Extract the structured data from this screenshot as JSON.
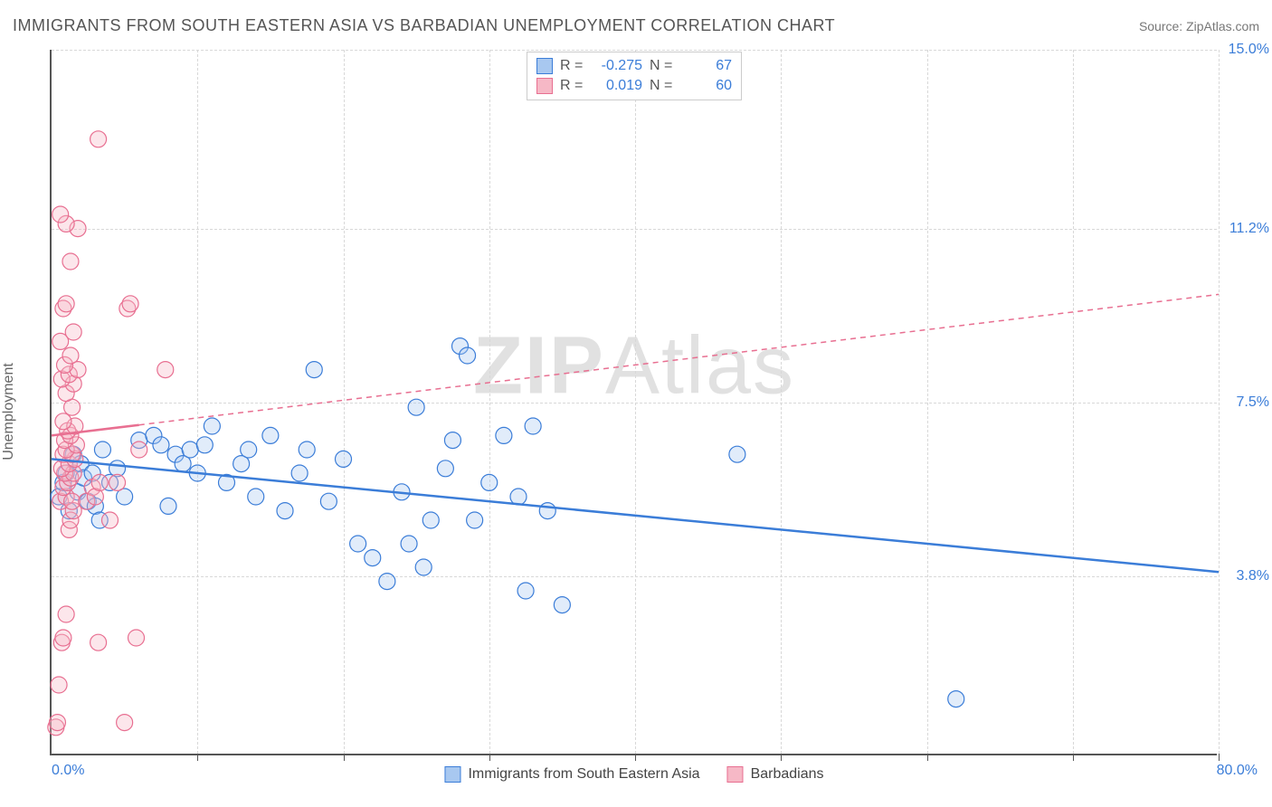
{
  "header": {
    "title": "IMMIGRANTS FROM SOUTH EASTERN ASIA VS BARBADIAN UNEMPLOYMENT CORRELATION CHART",
    "source": "Source: ZipAtlas.com"
  },
  "ylabel": "Unemployment",
  "watermark": {
    "bold": "ZIP",
    "light": "Atlas"
  },
  "chart": {
    "type": "scatter-with-regression",
    "background_color": "#ffffff",
    "grid_color": "#d8d8d8",
    "axis_color": "#555555",
    "label_color": "#3b7dd8",
    "xlim": [
      0,
      80
    ],
    "ylim": [
      0,
      15
    ],
    "y_ticks": [
      3.8,
      7.5,
      11.2,
      15.0
    ],
    "y_tick_labels": [
      "3.8%",
      "7.5%",
      "11.2%",
      "15.0%"
    ],
    "x_ticks": [
      0,
      10,
      20,
      30,
      40,
      50,
      60,
      70,
      80
    ],
    "x_corner_min": "0.0%",
    "x_corner_max": "80.0%",
    "marker_radius": 9,
    "marker_stroke_width": 1.2,
    "marker_fill_opacity": 0.35,
    "regression_line_width": 2.5,
    "series": [
      {
        "key": "immigrants",
        "label": "Immigrants from South Eastern Asia",
        "color_fill": "#a8c8f0",
        "color_stroke": "#3b7dd8",
        "line_dash": "none",
        "R": "-0.275",
        "N": "67",
        "regression": {
          "x1": 0,
          "y1": 6.3,
          "x2": 80,
          "y2": 3.9
        },
        "points": [
          [
            0.5,
            5.5
          ],
          [
            0.8,
            5.8
          ],
          [
            1.0,
            6.0
          ],
          [
            1.2,
            5.2
          ],
          [
            1.5,
            6.4
          ],
          [
            1.8,
            5.6
          ],
          [
            2.0,
            6.2
          ],
          [
            2.2,
            5.9
          ],
          [
            2.5,
            5.4
          ],
          [
            2.8,
            6.0
          ],
          [
            3.0,
            5.3
          ],
          [
            3.3,
            5.0
          ],
          [
            3.5,
            6.5
          ],
          [
            4.0,
            5.8
          ],
          [
            4.5,
            6.1
          ],
          [
            5.0,
            5.5
          ],
          [
            6.0,
            6.7
          ],
          [
            7.0,
            6.8
          ],
          [
            7.5,
            6.6
          ],
          [
            8.0,
            5.3
          ],
          [
            8.5,
            6.4
          ],
          [
            9.0,
            6.2
          ],
          [
            9.5,
            6.5
          ],
          [
            10.0,
            6.0
          ],
          [
            10.5,
            6.6
          ],
          [
            11.0,
            7.0
          ],
          [
            12.0,
            5.8
          ],
          [
            13.0,
            6.2
          ],
          [
            13.5,
            6.5
          ],
          [
            14.0,
            5.5
          ],
          [
            15.0,
            6.8
          ],
          [
            16.0,
            5.2
          ],
          [
            17.0,
            6.0
          ],
          [
            17.5,
            6.5
          ],
          [
            18.0,
            8.2
          ],
          [
            19.0,
            5.4
          ],
          [
            20.0,
            6.3
          ],
          [
            21.0,
            4.5
          ],
          [
            22.0,
            4.2
          ],
          [
            23.0,
            3.7
          ],
          [
            24.0,
            5.6
          ],
          [
            24.5,
            4.5
          ],
          [
            25.0,
            7.4
          ],
          [
            25.5,
            4.0
          ],
          [
            26.0,
            5.0
          ],
          [
            27.0,
            6.1
          ],
          [
            27.5,
            6.7
          ],
          [
            28.0,
            8.7
          ],
          [
            28.5,
            8.5
          ],
          [
            29.0,
            5.0
          ],
          [
            30.0,
            5.8
          ],
          [
            31.0,
            6.8
          ],
          [
            32.0,
            5.5
          ],
          [
            32.5,
            3.5
          ],
          [
            33.0,
            7.0
          ],
          [
            34.0,
            5.2
          ],
          [
            35.0,
            3.2
          ],
          [
            47.0,
            6.4
          ],
          [
            62.0,
            1.2
          ]
        ]
      },
      {
        "key": "barbadians",
        "label": "Barbadians",
        "color_fill": "#f6b8c6",
        "color_stroke": "#e86f91",
        "line_dash": "6 5",
        "R": "0.019",
        "N": "60",
        "regression": {
          "x1": 0,
          "y1": 6.8,
          "x2": 80,
          "y2": 9.8
        },
        "points": [
          [
            0.3,
            0.6
          ],
          [
            0.4,
            0.7
          ],
          [
            0.5,
            1.5
          ],
          [
            0.7,
            2.4
          ],
          [
            0.8,
            2.5
          ],
          [
            1.0,
            3.0
          ],
          [
            1.2,
            4.8
          ],
          [
            1.3,
            5.0
          ],
          [
            1.5,
            5.2
          ],
          [
            0.6,
            5.4
          ],
          [
            1.0,
            5.5
          ],
          [
            1.4,
            5.4
          ],
          [
            0.8,
            5.7
          ],
          [
            1.1,
            5.8
          ],
          [
            1.3,
            5.9
          ],
          [
            0.9,
            6.0
          ],
          [
            1.5,
            6.0
          ],
          [
            0.7,
            6.1
          ],
          [
            1.2,
            6.2
          ],
          [
            1.6,
            6.3
          ],
          [
            0.8,
            6.4
          ],
          [
            1.4,
            6.4
          ],
          [
            1.0,
            6.5
          ],
          [
            1.7,
            6.6
          ],
          [
            0.9,
            6.7
          ],
          [
            1.3,
            6.8
          ],
          [
            1.1,
            6.9
          ],
          [
            1.6,
            7.0
          ],
          [
            0.8,
            7.1
          ],
          [
            1.4,
            7.4
          ],
          [
            1.0,
            7.7
          ],
          [
            1.5,
            7.9
          ],
          [
            0.7,
            8.0
          ],
          [
            1.2,
            8.1
          ],
          [
            1.8,
            8.2
          ],
          [
            0.9,
            8.3
          ],
          [
            1.3,
            8.5
          ],
          [
            0.6,
            8.8
          ],
          [
            1.5,
            9.0
          ],
          [
            0.8,
            9.5
          ],
          [
            1.0,
            9.6
          ],
          [
            1.3,
            10.5
          ],
          [
            1.8,
            11.2
          ],
          [
            1.0,
            11.3
          ],
          [
            0.6,
            11.5
          ],
          [
            3.2,
            13.1
          ],
          [
            2.4,
            5.4
          ],
          [
            2.8,
            5.7
          ],
          [
            3.0,
            5.5
          ],
          [
            3.3,
            5.8
          ],
          [
            3.2,
            2.4
          ],
          [
            4.0,
            5.0
          ],
          [
            4.5,
            5.8
          ],
          [
            5.2,
            9.5
          ],
          [
            5.4,
            9.6
          ],
          [
            5.8,
            2.5
          ],
          [
            6.0,
            6.5
          ],
          [
            7.8,
            8.2
          ],
          [
            5.0,
            0.7
          ]
        ]
      }
    ]
  }
}
